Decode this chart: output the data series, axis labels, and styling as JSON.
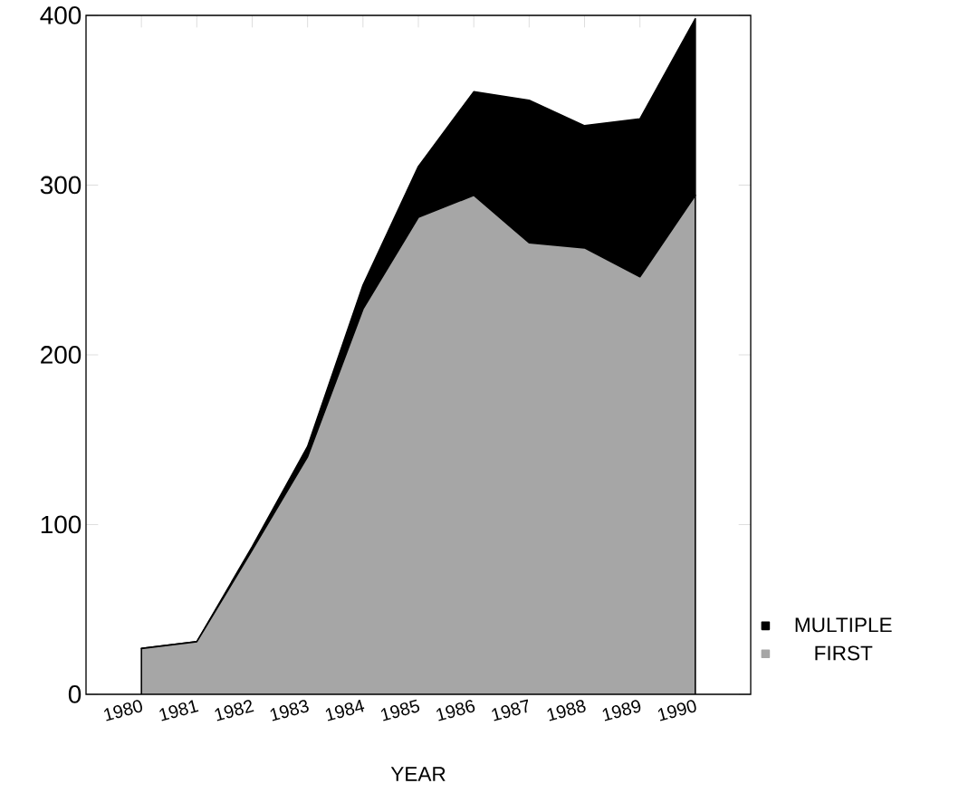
{
  "chart_data": {
    "type": "area",
    "stacked": true,
    "xlabel": "YEAR",
    "categories": [
      "1980",
      "1981",
      "1982",
      "1983",
      "1984",
      "1985",
      "1986",
      "1987",
      "1988",
      "1989",
      "1990"
    ],
    "series": [
      {
        "name": "FIRST",
        "color": "#a6a6a6",
        "values": [
          27,
          31,
          85,
          140,
          227,
          281,
          294,
          266,
          263,
          246,
          294
        ]
      },
      {
        "name": "MULTIPLE",
        "color": "#000000",
        "values": [
          0,
          0,
          2,
          6,
          14,
          30,
          61,
          84,
          72,
          93,
          104
        ]
      }
    ],
    "ylim": [
      0,
      400
    ],
    "yticks": [
      0,
      100,
      200,
      300,
      400
    ],
    "legend": "bottom right",
    "grid": false
  }
}
